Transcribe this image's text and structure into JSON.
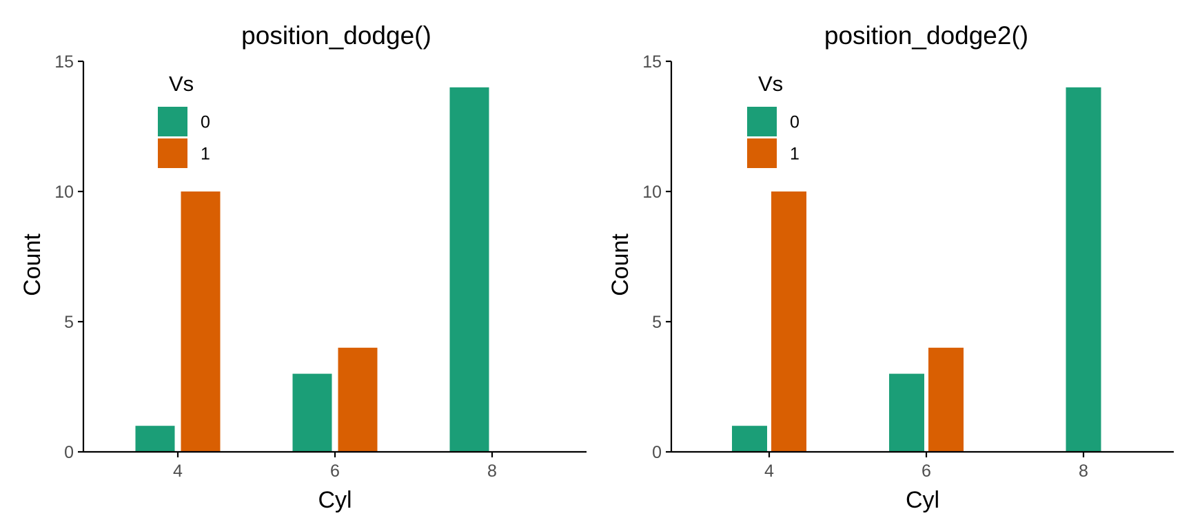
{
  "chart_data": [
    {
      "type": "bar",
      "title": "position_dodge()",
      "xlabel": "Cyl",
      "ylabel": "Count",
      "categories": [
        "4",
        "6",
        "8"
      ],
      "ylim": [
        0,
        15
      ],
      "yticks": [
        0,
        5,
        10,
        15
      ],
      "grid": false,
      "legend": {
        "title": "Vs",
        "placement": "top-left"
      },
      "series": [
        {
          "name": "0",
          "color": "#1B9E77",
          "values": [
            1,
            3,
            14
          ]
        },
        {
          "name": "1",
          "color": "#D95F02",
          "values": [
            10,
            4,
            null
          ]
        }
      ]
    },
    {
      "type": "bar",
      "title": "position_dodge2()",
      "xlabel": "Cyl",
      "ylabel": "Count",
      "categories": [
        "4",
        "6",
        "8"
      ],
      "ylim": [
        0,
        15
      ],
      "yticks": [
        0,
        5,
        10,
        15
      ],
      "grid": false,
      "legend": {
        "title": "Vs",
        "placement": "top-left"
      },
      "series": [
        {
          "name": "0",
          "color": "#1B9E77",
          "values": [
            1,
            3,
            14
          ]
        },
        {
          "name": "1",
          "color": "#D95F02",
          "values": [
            10,
            4,
            null
          ]
        }
      ]
    }
  ]
}
